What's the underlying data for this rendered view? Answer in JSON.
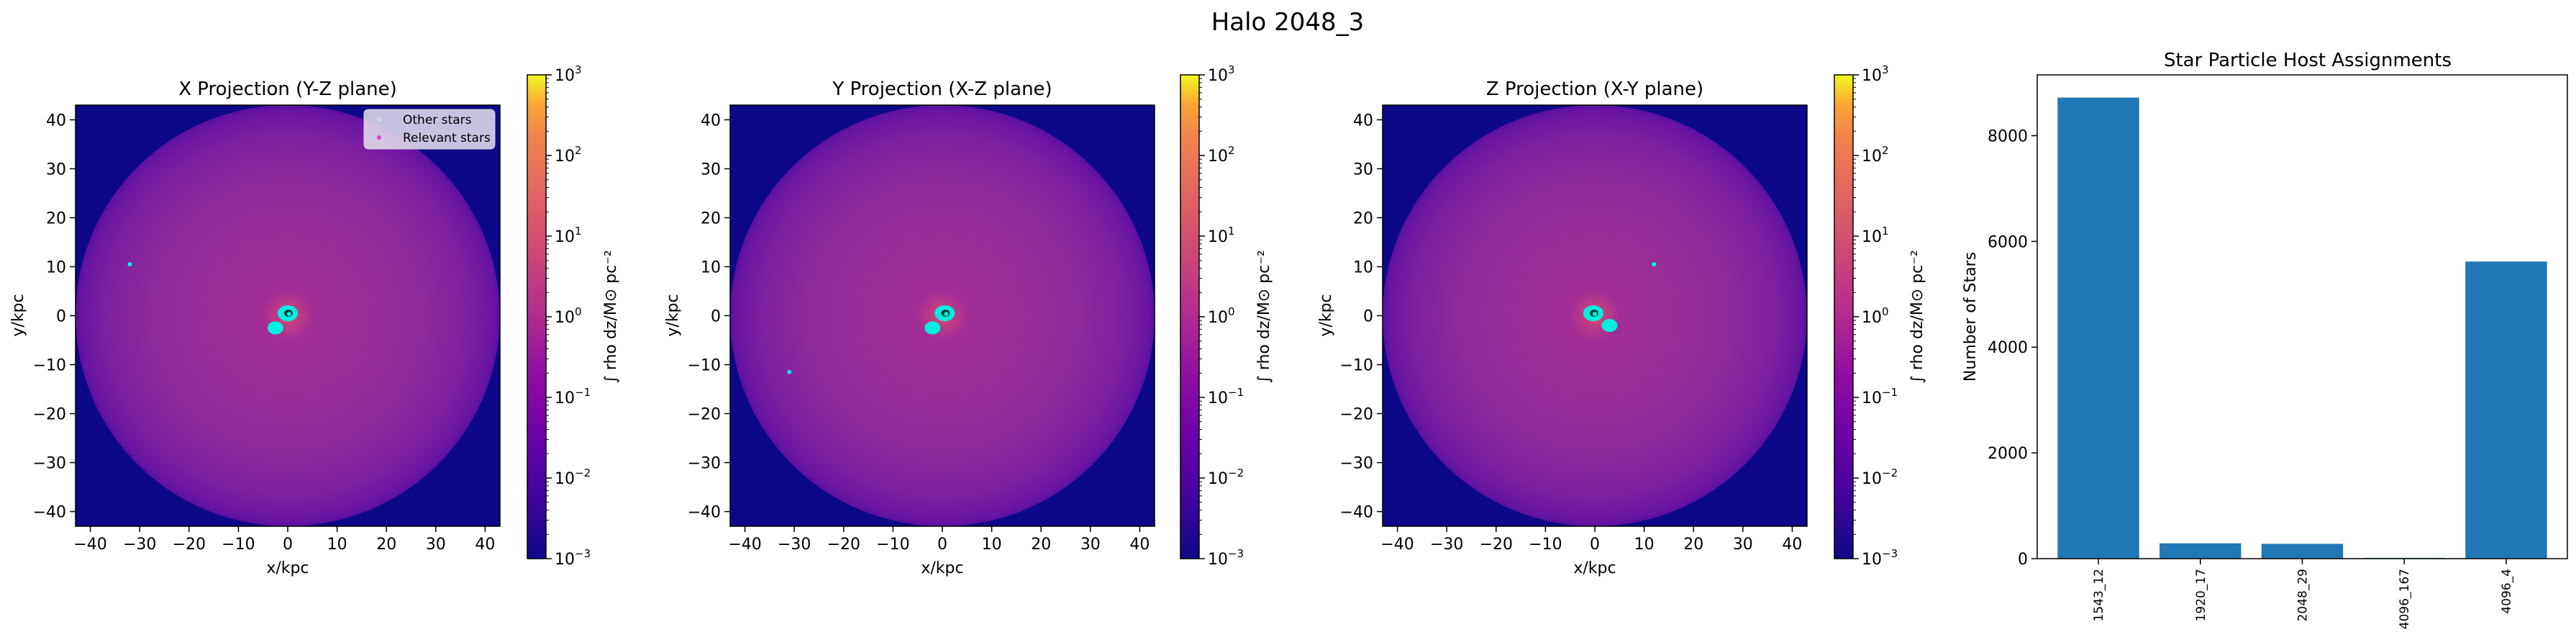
{
  "figure": {
    "suptitle": "Halo 2048_3"
  },
  "colors": {
    "background": "#0d0887",
    "stars": "#00f0e0",
    "bar": "#1f77b4",
    "legend_dot": "#cc44cc"
  },
  "chart_data": [
    {
      "type": "heatmap",
      "title": "X Projection (Y-Z plane)",
      "xlabel": "x/kpc",
      "ylabel": "y/kpc",
      "xlim": [
        -43,
        43
      ],
      "ylim": [
        -43,
        43
      ],
      "xticks": [
        -40,
        -30,
        -20,
        -10,
        0,
        10,
        20,
        30,
        40
      ],
      "yticks": [
        -40,
        -30,
        -20,
        -10,
        0,
        10,
        20,
        30,
        40
      ],
      "colorbar": {
        "label": "∫ rho dz/M⊙ pc⁻²",
        "scale": "log",
        "range": [
          0.001,
          1000
        ],
        "ticks": [
          {
            "base": "10",
            "exp": "3"
          },
          {
            "base": "10",
            "exp": "2"
          },
          {
            "base": "10",
            "exp": "1"
          },
          {
            "base": "10",
            "exp": "0"
          },
          {
            "base": "10",
            "exp": "−1"
          },
          {
            "base": "10",
            "exp": "−2"
          },
          {
            "base": "10",
            "exp": "−3"
          }
        ]
      },
      "legend": {
        "placement": "upper-right",
        "entries": [
          "Other stars",
          "Relevant stars"
        ]
      },
      "star_clumps": [
        {
          "x": 0,
          "y": 0.5,
          "size": "large"
        },
        {
          "x": -2.5,
          "y": -2.5,
          "size": "medium"
        },
        {
          "x": -32,
          "y": 10.5,
          "size": "small"
        }
      ]
    },
    {
      "type": "heatmap",
      "title": "Y Projection (X-Z plane)",
      "xlabel": "x/kpc",
      "ylabel": "y/kpc",
      "xlim": [
        -43,
        43
      ],
      "ylim": [
        -43,
        43
      ],
      "xticks": [
        -40,
        -30,
        -20,
        -10,
        0,
        10,
        20,
        30,
        40
      ],
      "yticks": [
        -40,
        -30,
        -20,
        -10,
        0,
        10,
        20,
        30,
        40
      ],
      "colorbar": {
        "label": "∫ rho dz/M⊙ pc⁻²",
        "scale": "log",
        "range": [
          0.001,
          1000
        ],
        "ticks": [
          {
            "base": "10",
            "exp": "3"
          },
          {
            "base": "10",
            "exp": "2"
          },
          {
            "base": "10",
            "exp": "1"
          },
          {
            "base": "10",
            "exp": "0"
          },
          {
            "base": "10",
            "exp": "−1"
          },
          {
            "base": "10",
            "exp": "−2"
          },
          {
            "base": "10",
            "exp": "−3"
          }
        ]
      },
      "star_clumps": [
        {
          "x": 0.5,
          "y": 0.5,
          "size": "large"
        },
        {
          "x": -2,
          "y": -2.5,
          "size": "medium"
        },
        {
          "x": -31,
          "y": -11.5,
          "size": "small"
        }
      ]
    },
    {
      "type": "heatmap",
      "title": "Z Projection (X-Y plane)",
      "xlabel": "x/kpc",
      "ylabel": "y/kpc",
      "xlim": [
        -43,
        43
      ],
      "ylim": [
        -43,
        43
      ],
      "xticks": [
        -40,
        -30,
        -20,
        -10,
        0,
        10,
        20,
        30,
        40
      ],
      "yticks": [
        -40,
        -30,
        -20,
        -10,
        0,
        10,
        20,
        30,
        40
      ],
      "colorbar": {
        "label": "∫ rho dz/M⊙ pc⁻²",
        "scale": "log",
        "range": [
          0.001,
          1000
        ],
        "ticks": [
          {
            "base": "10",
            "exp": "3"
          },
          {
            "base": "10",
            "exp": "2"
          },
          {
            "base": "10",
            "exp": "1"
          },
          {
            "base": "10",
            "exp": "0"
          },
          {
            "base": "10",
            "exp": "−1"
          },
          {
            "base": "10",
            "exp": "−2"
          },
          {
            "base": "10",
            "exp": "−3"
          }
        ]
      },
      "star_clumps": [
        {
          "x": -0.3,
          "y": 0.5,
          "size": "large"
        },
        {
          "x": 3,
          "y": -2,
          "size": "medium"
        },
        {
          "x": 12,
          "y": 10.5,
          "size": "small"
        }
      ]
    },
    {
      "type": "bar",
      "title": "Star Particle Host Assignments",
      "xlabel": "",
      "ylabel": "Number of Stars",
      "categories": [
        "1543_12",
        "1920_17",
        "2048_29",
        "4096_167",
        "4096_4"
      ],
      "values": [
        8720,
        290,
        280,
        15,
        5620
      ],
      "ylim": [
        0,
        9150
      ],
      "yticks": [
        0,
        2000,
        4000,
        6000,
        8000
      ]
    }
  ]
}
